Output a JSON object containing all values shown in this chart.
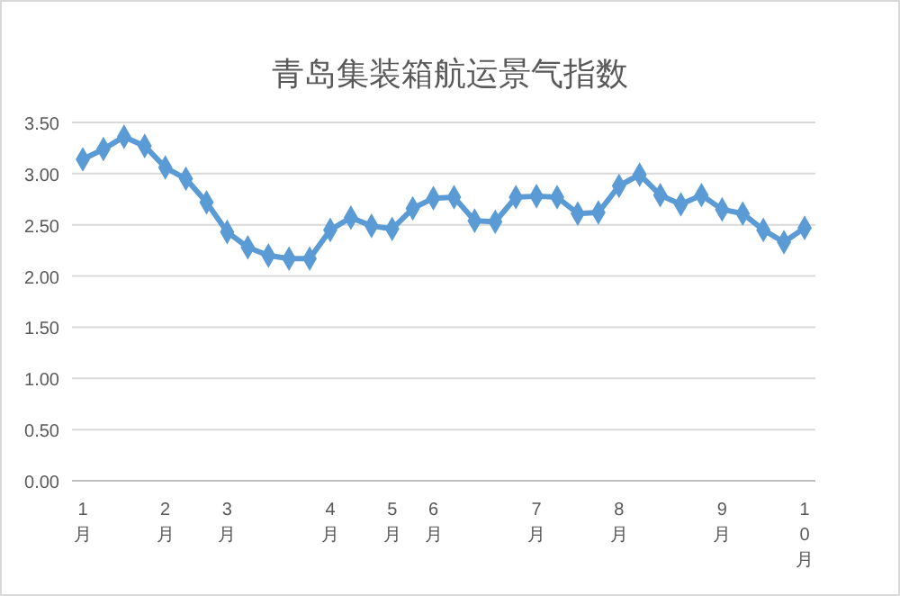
{
  "chart_data": {
    "type": "line",
    "title": "青岛集装箱航运景气指数",
    "categories": [
      "1月",
      null,
      null,
      null,
      "2月",
      null,
      null,
      "3月",
      null,
      null,
      null,
      null,
      "4月",
      null,
      null,
      "5月",
      null,
      "6月",
      null,
      null,
      null,
      null,
      "7月",
      null,
      null,
      null,
      "8月",
      null,
      null,
      null,
      null,
      "9月",
      null,
      null,
      null,
      "10月"
    ],
    "series": [
      {
        "color": "#5b9bd5",
        "values": [
          3.14,
          3.24,
          3.36,
          3.27,
          3.06,
          2.95,
          2.72,
          2.43,
          2.28,
          2.2,
          2.17,
          2.17,
          2.45,
          2.57,
          2.49,
          2.46,
          2.66,
          2.76,
          2.77,
          2.54,
          2.53,
          2.77,
          2.78,
          2.77,
          2.61,
          2.62,
          2.88,
          2.99,
          2.79,
          2.7,
          2.79,
          2.65,
          2.61,
          2.45,
          2.33,
          2.47
        ]
      }
    ],
    "ylim": [
      0,
      3.5
    ],
    "yticks": [
      {
        "value": 0,
        "label": "0.00"
      },
      {
        "value": 0.5,
        "label": "0.50"
      },
      {
        "value": 1,
        "label": "1.00"
      },
      {
        "value": 1.5,
        "label": "1.50"
      },
      {
        "value": 2,
        "label": "2.00"
      },
      {
        "value": 2.5,
        "label": "2.50"
      },
      {
        "value": 3,
        "label": "3.00"
      },
      {
        "value": 3.5,
        "label": "3.50"
      }
    ],
    "grid": "y",
    "marker": "diamond",
    "line_style": "solid"
  }
}
